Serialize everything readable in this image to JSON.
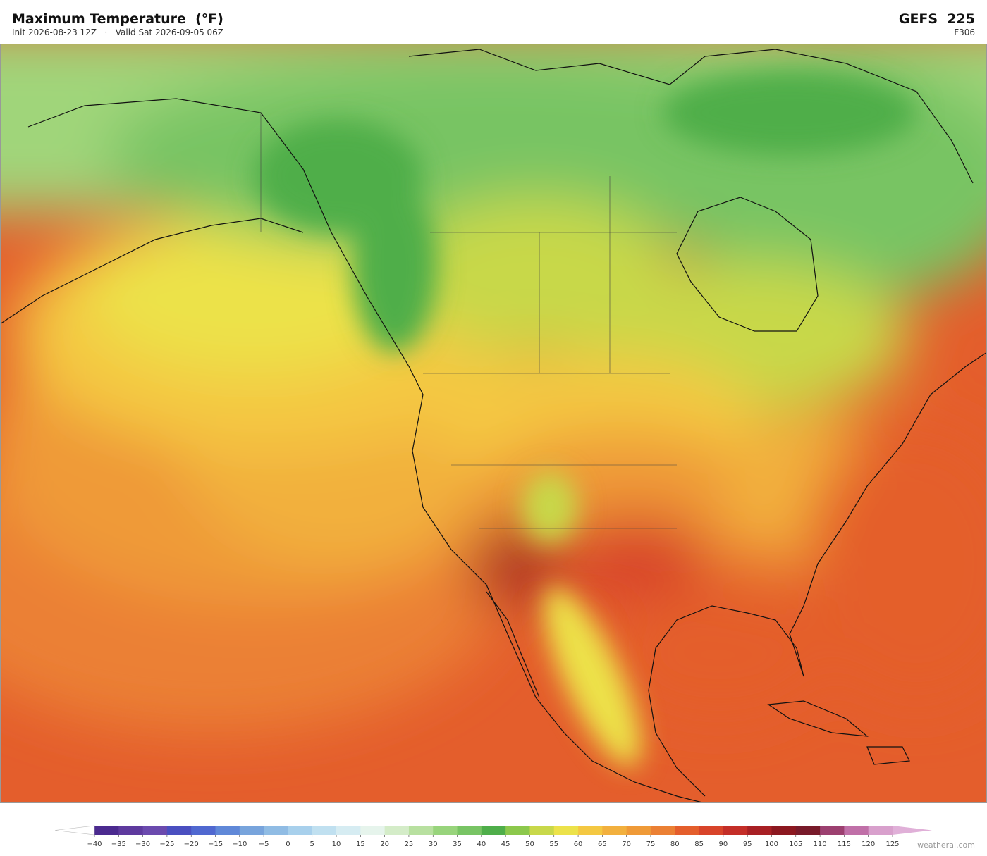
{
  "header": {
    "title": "Maximum Temperature  (°F)",
    "init": "Init 2026-08-23 12Z",
    "valid": "Valid Sat 2026-09-05 06Z",
    "model": "GEFS  225",
    "forecast_hour": "F306"
  },
  "colorbar": {
    "ticks": [
      {
        "value": -40,
        "label": "−40"
      },
      {
        "value": -35,
        "label": "−35"
      },
      {
        "value": -30,
        "label": "−30"
      },
      {
        "value": -25,
        "label": "−25"
      },
      {
        "value": -20,
        "label": "−20"
      },
      {
        "value": -15,
        "label": "−15"
      },
      {
        "value": -10,
        "label": "−10"
      },
      {
        "value": -5,
        "label": "−5"
      },
      0,
      5,
      10,
      15,
      20,
      25,
      30,
      35,
      40,
      45,
      50,
      55,
      60,
      65,
      70,
      75,
      80,
      85,
      90,
      95,
      100,
      105,
      110,
      115,
      120,
      125
    ],
    "colors": [
      "#4b2a8f",
      "#5e3a9e",
      "#6b4aae",
      "#4a4fc0",
      "#5068d0",
      "#6088d8",
      "#78a4dc",
      "#90bce4",
      "#a8d0ec",
      "#c0e0f0",
      "#d6ecf2",
      "#e6f4ec",
      "#d4ecc8",
      "#b8e0a0",
      "#98d47c",
      "#78c464",
      "#4fae4a",
      "#8cc84c",
      "#c8d84a",
      "#ece24a",
      "#f4c842",
      "#f2b03e",
      "#ef9a38",
      "#eb8034",
      "#e45e2c",
      "#d8442a",
      "#c42e28",
      "#a82024",
      "#8c1820",
      "#781a2a",
      "#9c4070",
      "#c070a8",
      "#d8a0cc"
    ],
    "extend_colors": [
      "#ffffff",
      "#e0b0d8"
    ]
  },
  "watermark": "weatherai.com"
}
